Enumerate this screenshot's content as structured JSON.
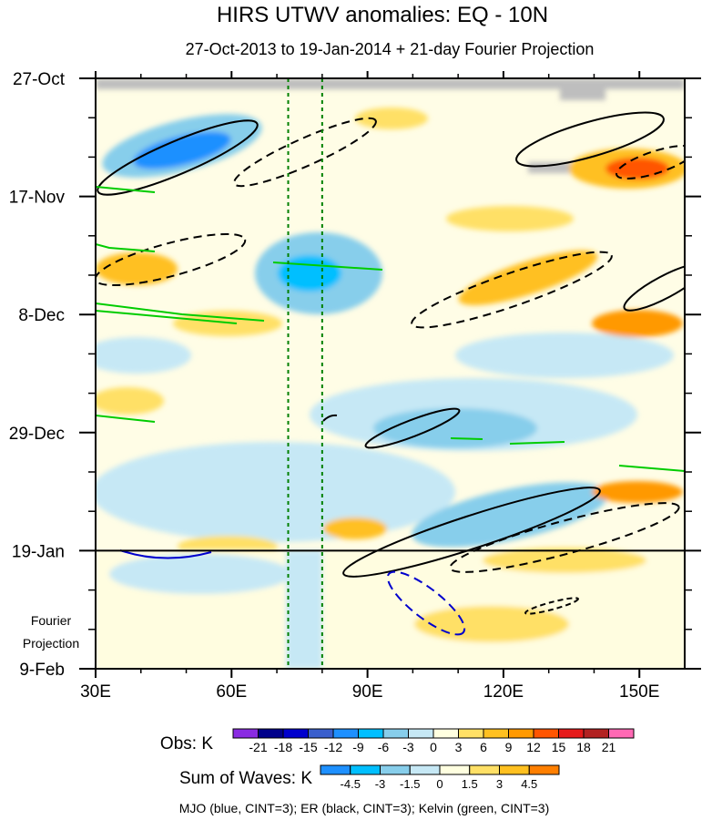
{
  "chart_data": {
    "type": "heatmap",
    "title": "HIRS UTWV anomalies: EQ - 10N",
    "subtitle": "27-Oct-2013 to 19-Jan-2014 + 21-day Fourier Projection",
    "x_axis": {
      "range": [
        30,
        160
      ],
      "ticks": [
        30,
        60,
        90,
        120,
        150
      ],
      "tick_labels": [
        "30E",
        "60E",
        "90E",
        "120E",
        "150E"
      ]
    },
    "y_axis": {
      "range_days": [
        0,
        105
      ],
      "ticks": [
        0,
        21,
        42,
        63,
        84,
        105
      ],
      "tick_labels": [
        "27-Oct",
        "17-Nov",
        "8-Dec",
        "29-Dec",
        "19-Jan",
        "9-Feb"
      ],
      "orientation": "time increasing downward"
    },
    "projection_label": [
      "Fourier",
      "Projection"
    ],
    "projection_start_day": 84,
    "reference_longitudes": [
      72.5,
      80
    ],
    "obs_colorbar": {
      "label": "Obs: K",
      "levels": [
        "-21",
        "-18",
        "-15",
        "-12",
        "-9",
        "-6",
        "-3",
        "0",
        "3",
        "6",
        "9",
        "12",
        "15",
        "18",
        "21"
      ],
      "colors": [
        "#8a2be2",
        "#00008b",
        "#0000cd",
        "#3a5fcd",
        "#1e90ff",
        "#00bfff",
        "#87ceeb",
        "#c6e8f5",
        "#ffffe0",
        "#ffe066",
        "#ffc020",
        "#ff9900",
        "#ff5500",
        "#e61a1a",
        "#b22222",
        "#ff69b4"
      ]
    },
    "waves_colorbar": {
      "label": "Sum of Waves: K",
      "levels": [
        "-4.5",
        "-3",
        "-1.5",
        "0",
        "1.5",
        "3",
        "4.5"
      ],
      "colors": [
        "#1e90ff",
        "#00bfff",
        "#87ceeb",
        "#c6e8f5",
        "#ffffe0",
        "#ffe066",
        "#ffc020",
        "#ff7f00"
      ]
    },
    "series": [
      {
        "name": "MJO",
        "color": "#0000cd",
        "cint": 3
      },
      {
        "name": "ER",
        "color": "#000000",
        "cint": 3
      },
      {
        "name": "Kelvin",
        "color": "#00cc00",
        "cint": 3
      }
    ],
    "legend_text": "MJO (blue, CINT=3); ER (black, CINT=3); Kelvin (green, CINT=3)"
  }
}
